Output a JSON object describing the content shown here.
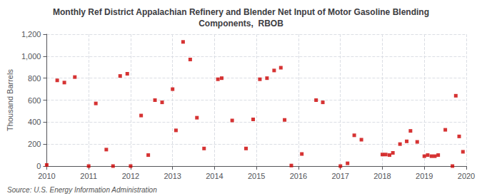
{
  "chart_data": {
    "type": "scatter",
    "title": "Monthly Ref District Appalachian Refinery and Blender Net Input of Motor Gasoline Blending\nComponents,  RBOB",
    "ylabel": "Thousand Barrels",
    "annotations": [
      "Source: U.S. Energy Information Administration"
    ],
    "color": "#cc0000",
    "marker": "square",
    "grid": true,
    "xlim": [
      2010.0,
      2020.0
    ],
    "xticks": [
      2010,
      2011,
      2012,
      2013,
      2014,
      2015,
      2016,
      2017,
      2018,
      2019,
      2020
    ],
    "ylim": [
      0,
      1200
    ],
    "yticks": [
      0,
      200,
      400,
      600,
      800,
      {
        "value": 1000,
        "label": "1,000"
      },
      {
        "value": 1200,
        "label": "1,200"
      }
    ],
    "x": [
      2010.0,
      2010.25,
      2010.42,
      2010.67,
      2011.0,
      2011.17,
      2011.42,
      2011.58,
      2011.75,
      2011.92,
      2012.0,
      2012.25,
      2012.42,
      2012.58,
      2012.75,
      2013.0,
      2013.08,
      2013.25,
      2013.42,
      2013.58,
      2013.75,
      2014.08,
      2014.17,
      2014.42,
      2014.75,
      2014.92,
      2015.08,
      2015.25,
      2015.42,
      2015.58,
      2015.67,
      2015.83,
      2016.08,
      2016.42,
      2016.58,
      2017.0,
      2017.17,
      2017.33,
      2017.5,
      2018.0,
      2018.08,
      2018.17,
      2018.25,
      2018.42,
      2018.58,
      2018.67,
      2018.83,
      2019.0,
      2019.08,
      2019.17,
      2019.25,
      2019.33,
      2019.5,
      2019.67,
      2019.75,
      2019.83,
      2019.92
    ],
    "values": [
      10,
      780,
      760,
      810,
      0,
      570,
      150,
      0,
      820,
      840,
      0,
      460,
      100,
      600,
      580,
      700,
      325,
      1130,
      970,
      440,
      160,
      790,
      800,
      415,
      160,
      425,
      790,
      800,
      870,
      895,
      420,
      5,
      110,
      600,
      580,
      0,
      25,
      280,
      240,
      105,
      105,
      100,
      120,
      200,
      225,
      320,
      220,
      90,
      100,
      90,
      90,
      100,
      330,
      0,
      640,
      270,
      130
    ]
  }
}
